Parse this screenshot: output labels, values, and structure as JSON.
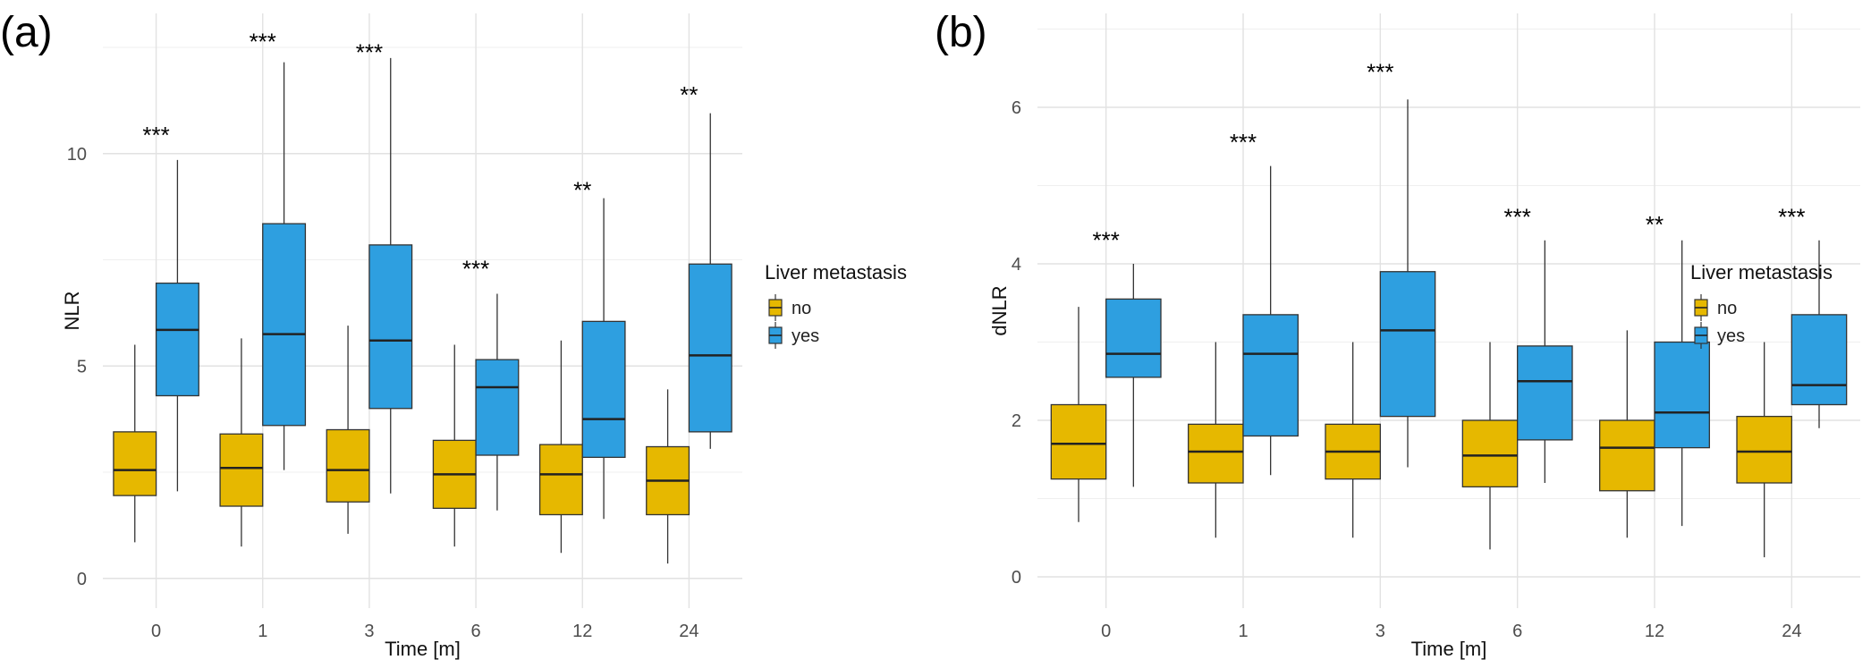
{
  "chart_data": [
    {
      "type": "box",
      "panel_label": "(a)",
      "xlabel": "Time [m]",
      "ylabel": "NLR",
      "categories": [
        "0",
        "1",
        "3",
        "6",
        "12",
        "24"
      ],
      "ylim": [
        -0.7,
        13.3
      ],
      "yticks": [
        0,
        5,
        10
      ],
      "grid": true,
      "legend": {
        "title": "Liver metastasis",
        "position": "right",
        "entries": [
          "no",
          "yes"
        ]
      },
      "series": [
        {
          "name": "no",
          "color": "#E6B800",
          "boxes": [
            {
              "min": 0.85,
              "q1": 1.95,
              "median": 2.55,
              "q3": 3.45,
              "max": 5.5
            },
            {
              "min": 0.75,
              "q1": 1.7,
              "median": 2.6,
              "q3": 3.4,
              "max": 5.65
            },
            {
              "min": 1.05,
              "q1": 1.8,
              "median": 2.55,
              "q3": 3.5,
              "max": 5.95
            },
            {
              "min": 0.75,
              "q1": 1.65,
              "median": 2.45,
              "q3": 3.25,
              "max": 5.5
            },
            {
              "min": 0.6,
              "q1": 1.5,
              "median": 2.45,
              "q3": 3.15,
              "max": 5.6
            },
            {
              "min": 0.35,
              "q1": 1.5,
              "median": 2.3,
              "q3": 3.1,
              "max": 4.45
            }
          ]
        },
        {
          "name": "yes",
          "color": "#2E9FE0",
          "boxes": [
            {
              "min": 2.05,
              "q1": 4.3,
              "median": 5.85,
              "q3": 6.95,
              "max": 9.85
            },
            {
              "min": 2.55,
              "q1": 3.6,
              "median": 5.75,
              "q3": 8.35,
              "max": 12.15
            },
            {
              "min": 2.0,
              "q1": 4.0,
              "median": 5.6,
              "q3": 7.85,
              "max": 12.25
            },
            {
              "min": 1.6,
              "q1": 2.9,
              "median": 4.5,
              "q3": 5.15,
              "max": 6.7
            },
            {
              "min": 1.4,
              "q1": 2.85,
              "median": 3.75,
              "q3": 6.05,
              "max": 8.95
            },
            {
              "min": 3.05,
              "q1": 3.45,
              "median": 5.25,
              "q3": 7.4,
              "max": 10.95
            }
          ]
        }
      ],
      "annotations": [
        "***",
        "***",
        "***",
        "***",
        "**",
        "**"
      ],
      "annotation_y": [
        10.25,
        12.45,
        12.2,
        7.1,
        8.95,
        11.2
      ]
    },
    {
      "type": "box",
      "panel_label": "(b)",
      "xlabel": "Time [m]",
      "ylabel": "dNLR",
      "categories": [
        "0",
        "1",
        "3",
        "6",
        "12",
        "24"
      ],
      "ylim": [
        -0.4,
        7.2
      ],
      "yticks": [
        0,
        2,
        4,
        6
      ],
      "grid": true,
      "legend": {
        "title": "Liver metastasis",
        "position": "right",
        "entries": [
          "no",
          "yes"
        ]
      },
      "series": [
        {
          "name": "no",
          "color": "#E6B800",
          "boxes": [
            {
              "min": 0.7,
              "q1": 1.25,
              "median": 1.7,
              "q3": 2.2,
              "max": 3.45
            },
            {
              "min": 0.5,
              "q1": 1.2,
              "median": 1.6,
              "q3": 1.95,
              "max": 3.0
            },
            {
              "min": 0.5,
              "q1": 1.25,
              "median": 1.6,
              "q3": 1.95,
              "max": 3.0
            },
            {
              "min": 0.35,
              "q1": 1.15,
              "median": 1.55,
              "q3": 2.0,
              "max": 3.0
            },
            {
              "min": 0.5,
              "q1": 1.1,
              "median": 1.65,
              "q3": 2.0,
              "max": 3.15
            },
            {
              "min": 0.25,
              "q1": 1.2,
              "median": 1.6,
              "q3": 2.05,
              "max": 3.0
            }
          ]
        },
        {
          "name": "yes",
          "color": "#2E9FE0",
          "boxes": [
            {
              "min": 1.15,
              "q1": 2.55,
              "median": 2.85,
              "q3": 3.55,
              "max": 4.0
            },
            {
              "min": 1.3,
              "q1": 1.8,
              "median": 2.85,
              "q3": 3.35,
              "max": 5.25
            },
            {
              "min": 1.4,
              "q1": 2.05,
              "median": 3.15,
              "q3": 3.9,
              "max": 6.1
            },
            {
              "min": 1.2,
              "q1": 1.75,
              "median": 2.5,
              "q3": 2.95,
              "max": 4.3
            },
            {
              "min": 0.65,
              "q1": 1.65,
              "median": 2.1,
              "q3": 3.0,
              "max": 4.3
            },
            {
              "min": 1.9,
              "q1": 2.2,
              "median": 2.45,
              "q3": 3.35,
              "max": 4.3
            }
          ]
        }
      ],
      "annotations": [
        "***",
        "***",
        "***",
        "***",
        "**",
        "***"
      ],
      "annotation_y": [
        4.2,
        5.45,
        6.35,
        4.5,
        4.4,
        4.5
      ]
    }
  ]
}
